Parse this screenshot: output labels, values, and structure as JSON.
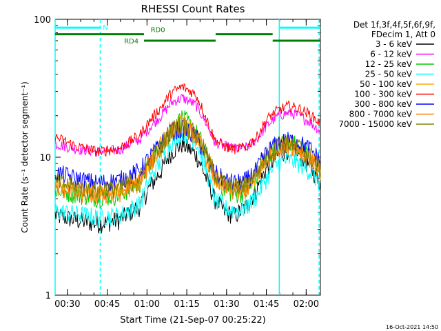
{
  "chart_data": {
    "type": "line",
    "title": "RHESSI Count Rates",
    "xlabel": "Start Time (21-Sep-07 00:25:22)",
    "ylabel": "Count Rate (s⁻¹ detector segment⁻¹)",
    "y_scale": "log",
    "ylim": [
      1,
      100
    ],
    "xlim_minutes_after_start": [
      0,
      100
    ],
    "x_ticks": [
      "00:30",
      "00:45",
      "01:00",
      "01:15",
      "01:30",
      "01:45",
      "02:00"
    ],
    "x_tick_minutes": [
      4.63,
      19.63,
      34.63,
      49.63,
      64.63,
      79.63,
      94.63
    ],
    "y_ticks": [
      "1",
      "10",
      "100"
    ],
    "y_tick_values": [
      1,
      10,
      100
    ],
    "legend_title": [
      "Det 1f,3f,4f,5f,6f,9f,",
      "FDecim 1, Att 0"
    ],
    "legend_position": "right",
    "series": [
      {
        "name": "3 - 6 keV",
        "color": "#000000",
        "x": [
          0,
          8,
          16,
          24,
          32,
          40,
          44,
          48,
          53,
          57,
          60,
          64,
          68,
          72,
          76,
          80,
          84,
          88,
          92,
          96,
          100
        ],
        "y": [
          3.8,
          3.5,
          3.3,
          3.5,
          4.4,
          8,
          11,
          12.5,
          10.5,
          7,
          5,
          4,
          3.8,
          4.4,
          5.8,
          8.5,
          10.3,
          11.5,
          10.5,
          8.5,
          6.6
        ]
      },
      {
        "name": "6 - 12 keV",
        "color": "#ff00ff",
        "x": [
          0,
          8,
          16,
          24,
          32,
          40,
          44,
          48,
          53,
          57,
          60,
          64,
          68,
          72,
          76,
          80,
          84,
          88,
          92,
          96,
          100
        ],
        "y": [
          12.5,
          11.5,
          11,
          11.3,
          13.5,
          20,
          25,
          27,
          24,
          17.5,
          13,
          12,
          11.5,
          11.8,
          13.5,
          17,
          20,
          21,
          20,
          18,
          15.5
        ]
      },
      {
        "name": "12 - 25 keV",
        "color": "#00c800",
        "x": [
          0,
          8,
          16,
          24,
          32,
          40,
          44,
          48,
          53,
          57,
          60,
          64,
          68,
          72,
          76,
          80,
          84,
          88,
          92,
          96,
          100
        ],
        "y": [
          5.8,
          5.4,
          5.1,
          5.3,
          6.5,
          12,
          16.5,
          19.5,
          15.5,
          10.5,
          7.2,
          5.8,
          5.4,
          5.6,
          7,
          10,
          12.5,
          13,
          12.3,
          10.2,
          8
        ]
      },
      {
        "name": "25 - 50 keV",
        "color": "#00ffff",
        "x": [
          0,
          8,
          16,
          24,
          32,
          40,
          44,
          48,
          53,
          57,
          60,
          64,
          68,
          72,
          76,
          80,
          84,
          88,
          92,
          96,
          100
        ],
        "y": [
          4.1,
          3.9,
          3.7,
          3.8,
          4.6,
          9.5,
          13,
          15.5,
          13,
          8,
          5,
          4.3,
          4.1,
          4.3,
          5.2,
          7.2,
          9,
          9.6,
          9,
          7.9,
          6.3
        ]
      },
      {
        "name": "50 - 100 keV",
        "color": "#ffa500",
        "x": [
          0,
          8,
          16,
          24,
          32,
          40,
          44,
          48,
          53,
          57,
          60,
          64,
          68,
          72,
          76,
          80,
          84,
          88,
          92,
          96,
          100
        ],
        "y": [
          6.3,
          5.8,
          5.5,
          5.7,
          6.8,
          12.5,
          16.5,
          18,
          15,
          10.5,
          7.5,
          6.2,
          5.8,
          6,
          7.5,
          10,
          12.2,
          12.8,
          12,
          10,
          8.1
        ]
      },
      {
        "name": "100 - 300 keV",
        "color": "#ff0000",
        "x": [
          0,
          8,
          16,
          24,
          32,
          40,
          44,
          48,
          53,
          57,
          60,
          64,
          68,
          72,
          76,
          80,
          84,
          88,
          92,
          96,
          100
        ],
        "y": [
          14,
          12,
          11,
          11.5,
          14.5,
          23,
          29.5,
          32.5,
          28.5,
          19,
          13.5,
          12,
          11.5,
          11.8,
          14,
          19,
          22,
          23.5,
          22.5,
          20.5,
          17.5
        ]
      },
      {
        "name": "300 - 800 keV",
        "color": "#0000ff",
        "x": [
          0,
          8,
          16,
          24,
          32,
          40,
          44,
          48,
          53,
          57,
          60,
          64,
          68,
          72,
          76,
          80,
          84,
          88,
          92,
          96,
          100
        ],
        "y": [
          7.8,
          7,
          6.5,
          6.8,
          8,
          12.5,
          15.5,
          16,
          14.2,
          10,
          7.8,
          6.8,
          6.5,
          6.8,
          8.1,
          11,
          12.8,
          13.3,
          12.8,
          11.5,
          9.4
        ]
      },
      {
        "name": "800 - 7000 keV",
        "color": "#ff8000",
        "x": [
          0,
          8,
          16,
          24,
          32,
          40,
          44,
          48,
          53,
          57,
          60,
          64,
          68,
          72,
          76,
          80,
          84,
          88,
          92,
          96,
          100
        ],
        "y": [
          6.1,
          5.6,
          5.3,
          5.5,
          6.6,
          11.5,
          15.5,
          17,
          14.2,
          10,
          7.1,
          6,
          5.6,
          5.8,
          7.2,
          9.6,
          11.8,
          12.3,
          11.5,
          9.8,
          7.8
        ]
      },
      {
        "name": "7000 - 15000 keV",
        "color": "#808000",
        "x": [
          0,
          8,
          16,
          24,
          32,
          40,
          44,
          48,
          53,
          57,
          60,
          64,
          68,
          72,
          76,
          80,
          84,
          88,
          92,
          96,
          100
        ],
        "y": [
          6.6,
          6.1,
          5.8,
          6,
          7.1,
          12,
          16,
          17.5,
          14.8,
          10.5,
          7.6,
          6.5,
          6.1,
          6.3,
          7.8,
          10.2,
          12.2,
          12.7,
          11.9,
          10.1,
          8.3
        ]
      }
    ],
    "annotations": {
      "attenuator_bars": [
        {
          "label": "N",
          "color": "#00ffff",
          "level": 87,
          "segments": [
            [
              0,
              17
            ],
            [
              84.5,
              100
            ]
          ]
        },
        {
          "label": "RD0",
          "color": "#008000",
          "level": 78,
          "segments": [
            [
              0,
              33.5
            ],
            [
              60.5,
              82
            ]
          ]
        },
        {
          "label": "RD4",
          "color": "#008000",
          "level": 70,
          "segments": [
            [
              33.5,
              60.5
            ],
            [
              82,
              100
            ]
          ]
        }
      ],
      "vertical_solid_minutes": [
        0,
        84.5
      ],
      "vertical_dashed_minutes": [
        17,
        99.5
      ]
    }
  },
  "footer": {
    "timestamp": "16-Oct-2021 14:50"
  }
}
